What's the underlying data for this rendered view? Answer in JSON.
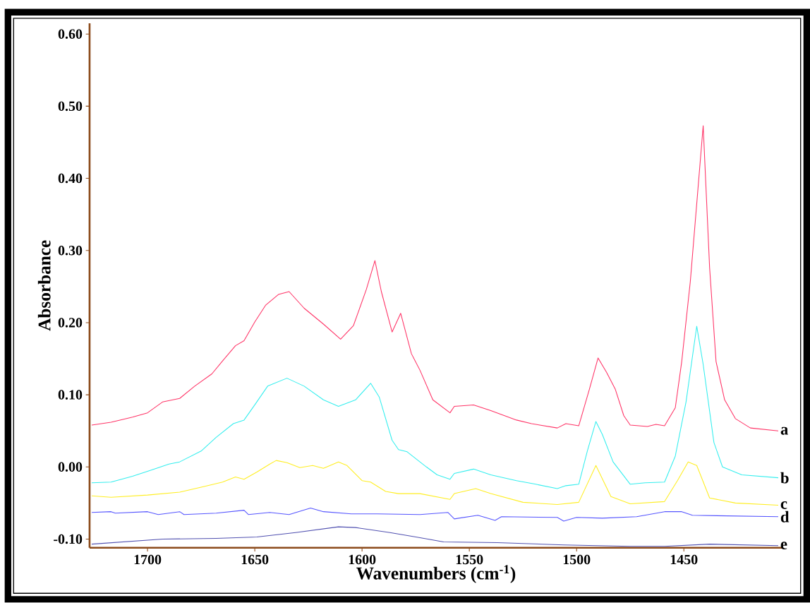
{
  "chart_data": {
    "type": "line",
    "xlabel": "Wavenumbers (cm$^{-1}$)",
    "ylabel": "Absorbance",
    "xlim": [
      1727,
      1404
    ],
    "ylim": [
      -0.112,
      0.615
    ],
    "xticks": [
      1700,
      1650,
      1600,
      1550,
      1500,
      1450
    ],
    "yticks": [
      {
        "value": 0.6,
        "label": "0.60"
      },
      {
        "value": 0.5,
        "label": "0.50"
      },
      {
        "value": 0.4,
        "label": "0.40"
      },
      {
        "value": 0.3,
        "label": "0.30"
      },
      {
        "value": 0.2,
        "label": "0.20"
      },
      {
        "value": 0.1,
        "label": "0.10"
      },
      {
        "value": 0,
        "label": "0.00"
      },
      {
        "value": -0.1,
        "label": "-0.10"
      }
    ],
    "series": [
      {
        "name": "a",
        "color": "#ff3366",
        "x": [
          1726,
          1717,
          1707,
          1700,
          1693,
          1685,
          1678,
          1670,
          1665,
          1659,
          1655,
          1650,
          1645,
          1639,
          1634,
          1627,
          1618,
          1610,
          1604,
          1598,
          1594,
          1591,
          1586,
          1582,
          1577,
          1573,
          1567,
          1559,
          1557,
          1548,
          1540,
          1528,
          1521,
          1509,
          1505,
          1499,
          1494,
          1490,
          1486,
          1482,
          1478,
          1475,
          1467,
          1463,
          1459,
          1454,
          1451,
          1447,
          1441,
          1438,
          1435,
          1431,
          1426,
          1419,
          1406
        ],
        "values": [
          0.058,
          0.062,
          0.069,
          0.075,
          0.09,
          0.095,
          0.112,
          0.129,
          0.147,
          0.168,
          0.175,
          0.201,
          0.224,
          0.239,
          0.243,
          0.22,
          0.198,
          0.177,
          0.196,
          0.246,
          0.286,
          0.243,
          0.187,
          0.213,
          0.157,
          0.134,
          0.093,
          0.075,
          0.084,
          0.086,
          0.078,
          0.065,
          0.06,
          0.054,
          0.06,
          0.057,
          0.108,
          0.151,
          0.131,
          0.108,
          0.071,
          0.058,
          0.056,
          0.059,
          0.057,
          0.082,
          0.146,
          0.257,
          0.473,
          0.276,
          0.146,
          0.093,
          0.067,
          0.054,
          0.05
        ]
      },
      {
        "name": "b",
        "color": "#33eeee",
        "x": [
          1726,
          1717,
          1707,
          1698,
          1690,
          1685,
          1675,
          1668,
          1660,
          1655,
          1650,
          1644,
          1635,
          1627,
          1618,
          1611,
          1603,
          1596,
          1592,
          1586,
          1583,
          1579,
          1570,
          1565,
          1559,
          1557,
          1548,
          1540,
          1528,
          1519,
          1509,
          1505,
          1499,
          1495,
          1491,
          1488,
          1483,
          1475,
          1468,
          1459,
          1454,
          1449,
          1444,
          1441,
          1436,
          1432,
          1423,
          1406
        ],
        "values": [
          -0.022,
          -0.021,
          -0.013,
          -0.004,
          0.004,
          0.007,
          0.022,
          0.041,
          0.06,
          0.065,
          0.086,
          0.112,
          0.123,
          0.112,
          0.093,
          0.084,
          0.093,
          0.116,
          0.097,
          0.037,
          0.024,
          0.021,
          0.0,
          -0.011,
          -0.017,
          -0.009,
          -0.003,
          -0.011,
          -0.019,
          -0.024,
          -0.03,
          -0.026,
          -0.024,
          0.022,
          0.063,
          0.045,
          0.007,
          -0.024,
          -0.022,
          -0.021,
          0.015,
          0.09,
          0.195,
          0.142,
          0.034,
          0.0,
          -0.011,
          -0.015
        ]
      },
      {
        "name": "c",
        "color": "#ffee22",
        "x": [
          1726,
          1717,
          1700,
          1685,
          1675,
          1665,
          1659,
          1655,
          1649,
          1643,
          1640,
          1635,
          1629,
          1623,
          1618,
          1611,
          1607,
          1600,
          1596,
          1589,
          1583,
          1573,
          1559,
          1557,
          1547,
          1540,
          1525,
          1509,
          1499,
          1491,
          1484,
          1475,
          1459,
          1453,
          1448,
          1444,
          1438,
          1426,
          1406
        ],
        "values": [
          -0.04,
          -0.042,
          -0.039,
          -0.035,
          -0.028,
          -0.021,
          -0.014,
          -0.017,
          -0.007,
          0.004,
          0.009,
          0.006,
          -0.001,
          0.002,
          -0.002,
          0.007,
          0.002,
          -0.019,
          -0.021,
          -0.034,
          -0.037,
          -0.037,
          -0.045,
          -0.037,
          -0.03,
          -0.037,
          -0.049,
          -0.052,
          -0.049,
          0.002,
          -0.041,
          -0.051,
          -0.048,
          -0.019,
          0.007,
          0.002,
          -0.043,
          -0.05,
          -0.053
        ]
      },
      {
        "name": "d",
        "color": "#5555ff",
        "x": [
          1726,
          1717,
          1715,
          1700,
          1695,
          1685,
          1683,
          1668,
          1655,
          1653,
          1643,
          1634,
          1624,
          1618,
          1605,
          1593,
          1573,
          1560,
          1557,
          1546,
          1538,
          1535,
          1509,
          1506,
          1500,
          1488,
          1472,
          1459,
          1451,
          1446,
          1426,
          1406
        ],
        "values": [
          -0.063,
          -0.062,
          -0.064,
          -0.062,
          -0.066,
          -0.062,
          -0.066,
          -0.064,
          -0.06,
          -0.066,
          -0.063,
          -0.066,
          -0.057,
          -0.062,
          -0.065,
          -0.065,
          -0.066,
          -0.063,
          -0.072,
          -0.067,
          -0.074,
          -0.069,
          -0.07,
          -0.075,
          -0.07,
          -0.071,
          -0.069,
          -0.062,
          -0.062,
          -0.067,
          -0.068,
          -0.069
        ]
      },
      {
        "name": "e",
        "color": "#5050b0",
        "x": [
          1726,
          1693,
          1668,
          1649,
          1631,
          1611,
          1603,
          1587,
          1573,
          1562,
          1537,
          1506,
          1475,
          1459,
          1438,
          1406
        ],
        "values": [
          -0.107,
          -0.1,
          -0.099,
          -0.097,
          -0.091,
          -0.083,
          -0.084,
          -0.091,
          -0.098,
          -0.104,
          -0.105,
          -0.108,
          -0.11,
          -0.11,
          -0.107,
          -0.109
        ]
      }
    ]
  }
}
